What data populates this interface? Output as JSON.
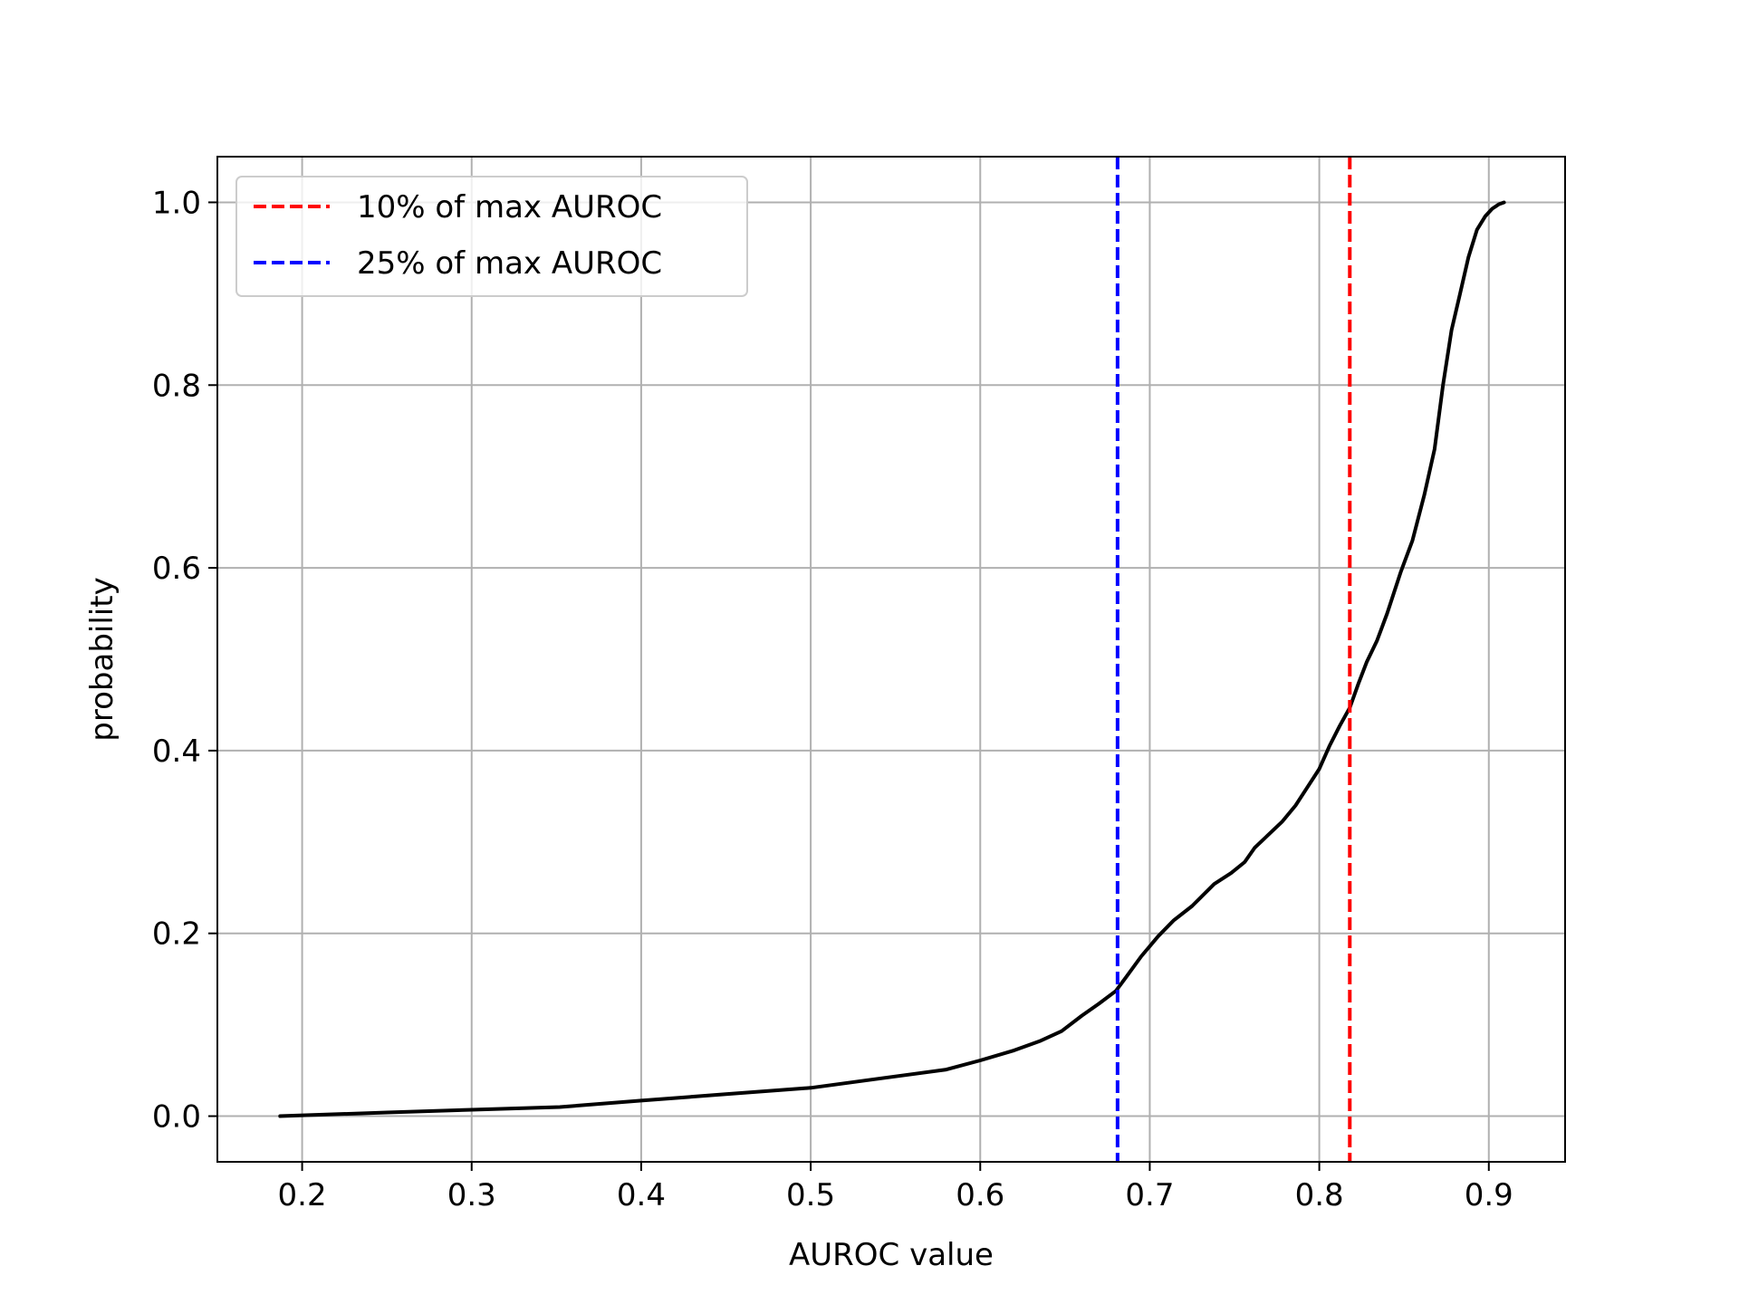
{
  "chart_data": {
    "type": "line",
    "title": "",
    "xlabel": "AUROC value",
    "ylabel": "probability",
    "xlim": [
      0.15,
      0.945
    ],
    "ylim": [
      -0.05,
      1.05
    ],
    "xticks": [
      0.2,
      0.3,
      0.4,
      0.5,
      0.6,
      0.7,
      0.8,
      0.9
    ],
    "xtick_labels": [
      "0.2",
      "0.3",
      "0.4",
      "0.5",
      "0.6",
      "0.7",
      "0.8",
      "0.9"
    ],
    "yticks": [
      0.0,
      0.2,
      0.4,
      0.6,
      0.8,
      1.0
    ],
    "ytick_labels": [
      "0.0",
      "0.2",
      "0.4",
      "0.6",
      "0.8",
      "1.0"
    ],
    "grid": true,
    "legend_position": "top-left",
    "series": [
      {
        "style": "solid",
        "color": "#000000",
        "x": [
          0.187,
          0.25,
          0.3,
          0.352,
          0.4,
          0.45,
          0.5,
          0.54,
          0.58,
          0.6,
          0.62,
          0.635,
          0.648,
          0.66,
          0.67,
          0.68,
          0.686,
          0.695,
          0.705,
          0.714,
          0.725,
          0.738,
          0.748,
          0.756,
          0.762,
          0.77,
          0.778,
          0.786,
          0.793,
          0.8,
          0.806,
          0.812,
          0.818,
          0.823,
          0.828,
          0.834,
          0.84,
          0.848,
          0.855,
          0.862,
          0.868,
          0.873,
          0.878,
          0.883,
          0.888,
          0.893,
          0.898,
          0.902,
          0.906,
          0.909
        ],
        "y": [
          0.0,
          0.004,
          0.007,
          0.01,
          0.017,
          0.024,
          0.031,
          0.041,
          0.051,
          0.061,
          0.072,
          0.082,
          0.093,
          0.11,
          0.123,
          0.137,
          0.152,
          0.175,
          0.197,
          0.214,
          0.23,
          0.254,
          0.266,
          0.278,
          0.294,
          0.308,
          0.322,
          0.34,
          0.36,
          0.38,
          0.405,
          0.427,
          0.447,
          0.473,
          0.497,
          0.52,
          0.55,
          0.595,
          0.63,
          0.68,
          0.73,
          0.8,
          0.86,
          0.9,
          0.94,
          0.97,
          0.985,
          0.993,
          0.998,
          1.0
        ]
      },
      {
        "name": "10% of max AUROC",
        "style": "dashed",
        "color": "#ff0000",
        "vline_x": 0.818
      },
      {
        "name": "25% of max AUROC",
        "style": "dashed",
        "color": "#0000ff",
        "vline_x": 0.681
      }
    ]
  }
}
